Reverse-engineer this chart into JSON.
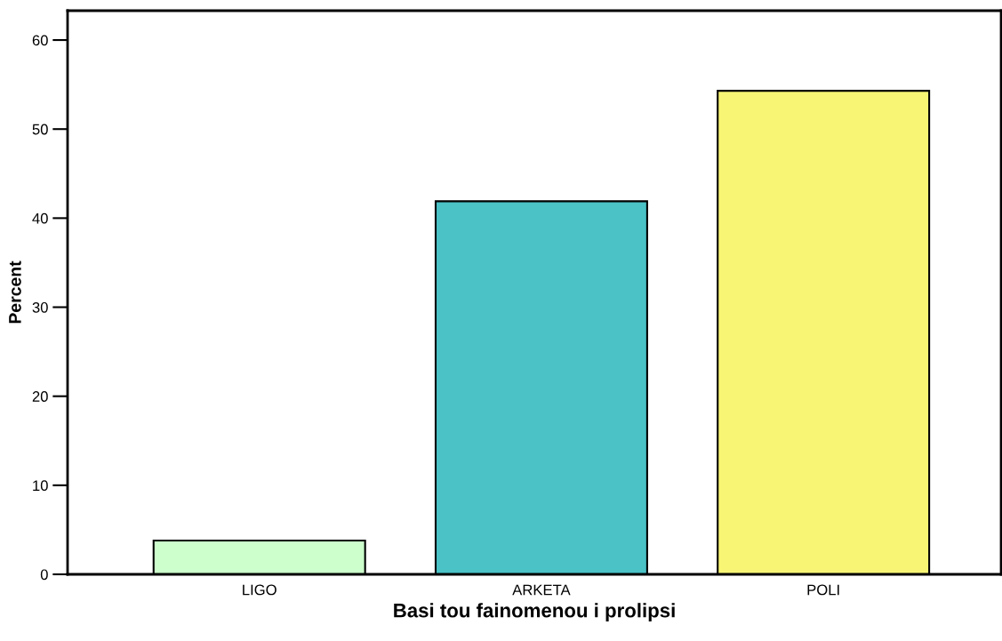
{
  "chart_data": {
    "type": "bar",
    "xlabel": "Basi tou fainomenou i prolipsi",
    "ylabel": "Percent",
    "categories": [
      "LIGO",
      "ARKETA",
      "POLI"
    ],
    "values": [
      3.8,
      41.9,
      54.3
    ],
    "colors": [
      "#ccffcc",
      "#4ac2c6",
      "#f8f574"
    ],
    "ylim": [
      0,
      63.3
    ],
    "yticks": [
      0,
      10,
      20,
      30,
      40,
      50,
      60
    ],
    "grid": false,
    "legend": false
  }
}
